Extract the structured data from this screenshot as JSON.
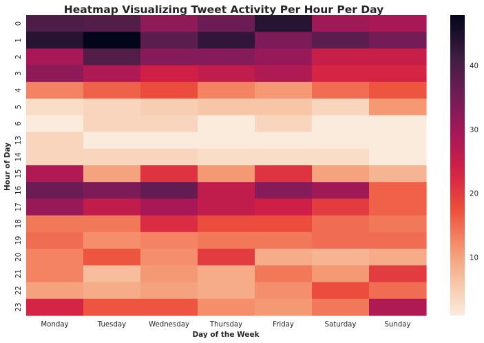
{
  "chart_data": {
    "type": "heatmap",
    "title": "Heatmap Visualizing Tweet Activity Per Hour Per Day",
    "xlabel": "Day of the Week",
    "ylabel": "Hour of Day",
    "x_categories": [
      "Monday",
      "Tuesday",
      "Wednesday",
      "Thursday",
      "Friday",
      "Saturday",
      "Sunday"
    ],
    "y_categories": [
      "0",
      "1",
      "2",
      "3",
      "4",
      "5",
      "6",
      "13",
      "14",
      "15",
      "16",
      "17",
      "18",
      "19",
      "20",
      "21",
      "22",
      "23"
    ],
    "values": [
      [
        40,
        39,
        32,
        36,
        44,
        30,
        29
      ],
      [
        44,
        48,
        38,
        43,
        34,
        38,
        35
      ],
      [
        29,
        39,
        33,
        33,
        31,
        25,
        25
      ],
      [
        32,
        28,
        24,
        26,
        28,
        23,
        23
      ],
      [
        13,
        16,
        18,
        13,
        11,
        15,
        17
      ],
      [
        3,
        4,
        5,
        6,
        6,
        4,
        11
      ],
      [
        1,
        4,
        4,
        1,
        4,
        1,
        1
      ],
      [
        4,
        1,
        1,
        1,
        1,
        1,
        1
      ],
      [
        4,
        4,
        4,
        3,
        3,
        3,
        1
      ],
      [
        28,
        10,
        21,
        11,
        21,
        10,
        8
      ],
      [
        36,
        34,
        37,
        26,
        33,
        30,
        16
      ],
      [
        31,
        26,
        29,
        26,
        24,
        20,
        16
      ],
      [
        14,
        14,
        22,
        18,
        18,
        15,
        14
      ],
      [
        15,
        12,
        13,
        14,
        14,
        15,
        15
      ],
      [
        13,
        17,
        12,
        20,
        9,
        8,
        9
      ],
      [
        13,
        7,
        11,
        9,
        14,
        11,
        20
      ],
      [
        10,
        9,
        10,
        9,
        12,
        18,
        15
      ],
      [
        23,
        17,
        17,
        12,
        11,
        14,
        28
      ]
    ],
    "colorbar": {
      "ticks": [
        10,
        20,
        30,
        40
      ],
      "min": 1,
      "max": 48
    },
    "colormap": "rocket_r",
    "grid": false,
    "legend": "colorbar-right"
  }
}
